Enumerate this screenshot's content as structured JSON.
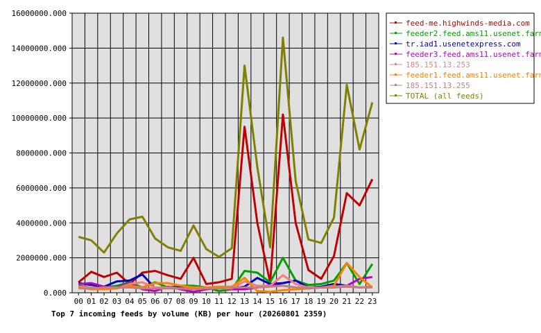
{
  "chart_data": {
    "type": "line",
    "title": "Top 7 incoming feeds by volume (KB) per hour (20260801 2359)",
    "xlabel": "",
    "ylabel": "",
    "ylim": [
      0,
      16000000
    ],
    "yticks": [
      "0.000",
      "2000000.000",
      "4000000.000",
      "6000000.000",
      "8000000.000",
      "10000000.000",
      "12000000.000",
      "14000000.000",
      "16000000.000"
    ],
    "ytick_values": [
      0,
      2000000,
      4000000,
      6000000,
      8000000,
      10000000,
      12000000,
      14000000,
      16000000
    ],
    "categories": [
      "00",
      "01",
      "02",
      "03",
      "04",
      "05",
      "06",
      "07",
      "08",
      "09",
      "10",
      "11",
      "12",
      "13",
      "14",
      "15",
      "16",
      "17",
      "18",
      "19",
      "20",
      "21",
      "22",
      "23"
    ],
    "grid": true,
    "legend_position": "right",
    "background_color": "#e0e0e0",
    "series": [
      {
        "name": "feed-me.highwinds-media.com",
        "color": "#c00000",
        "values": [
          600000,
          1200000,
          900000,
          1150000,
          500000,
          1150000,
          1250000,
          1000000,
          800000,
          2000000,
          500000,
          600000,
          800000,
          9500000,
          4000000,
          600000,
          10200000,
          4000000,
          1300000,
          800000,
          2100000,
          5700000,
          5000000,
          6500000
        ]
      },
      {
        "name": "feeder2.feed.ams11.usenet.farm",
        "color": "#00a000",
        "values": [
          400000,
          300000,
          300000,
          400000,
          600000,
          300000,
          600000,
          300000,
          400000,
          400000,
          300000,
          100000,
          200000,
          1250000,
          1150000,
          600000,
          2000000,
          700000,
          450000,
          500000,
          700000,
          1700000,
          500000,
          1650000
        ]
      },
      {
        "name": "tr.iad1.usenetexpress.com",
        "color": "#0000c0",
        "values": [
          550000,
          450000,
          350000,
          650000,
          700000,
          1050000,
          250000,
          300000,
          300000,
          250000,
          200000,
          300000,
          250000,
          350000,
          850000,
          500000,
          550000,
          700000,
          300000,
          350000,
          500000,
          400000,
          300000,
          350000
        ]
      },
      {
        "name": "feeder3.feed.ams11.usenet.farm",
        "color": "#c000c0",
        "values": [
          500000,
          550000,
          350000,
          300000,
          550000,
          200000,
          100000,
          350000,
          200000,
          50000,
          200000,
          300000,
          200000,
          200000,
          300000,
          450000,
          400000,
          300000,
          250000,
          300000,
          300000,
          400000,
          800000,
          900000
        ]
      },
      {
        "name": "185.151.13.253",
        "color": "#f08080",
        "values": [
          350000,
          300000,
          250000,
          250000,
          500000,
          600000,
          300000,
          300000,
          250000,
          250000,
          300000,
          250000,
          250000,
          650000,
          400000,
          400000,
          1000000,
          500000,
          300000,
          300000,
          350000,
          400000,
          300000,
          350000
        ]
      },
      {
        "name": "feeder1.feed.ams11.usenet.farm",
        "color": "#ff8000",
        "values": [
          300000,
          200000,
          200000,
          250000,
          400000,
          300000,
          550000,
          550000,
          400000,
          300000,
          300000,
          350000,
          350000,
          850000,
          100000,
          50000,
          150000,
          200000,
          250000,
          300000,
          400000,
          1700000,
          900000,
          300000
        ]
      },
      {
        "name": "185.151.13.255",
        "color": "#c08080",
        "values": [
          250000,
          250000,
          300000,
          300000,
          300000,
          250000,
          250000,
          250000,
          250000,
          200000,
          250000,
          250000,
          300000,
          300000,
          300000,
          350000,
          400000,
          300000,
          250000,
          300000,
          300000,
          350000,
          300000,
          300000
        ]
      },
      {
        "name": "TOTAL (all feeds)",
        "color": "#808000",
        "values": [
          3200000,
          3000000,
          2300000,
          3400000,
          4200000,
          4350000,
          3100000,
          2600000,
          2400000,
          3850000,
          2500000,
          2050000,
          2550000,
          13000000,
          7200000,
          2600000,
          14600000,
          6400000,
          3050000,
          2850000,
          4300000,
          11900000,
          8200000,
          10900000
        ]
      }
    ]
  }
}
